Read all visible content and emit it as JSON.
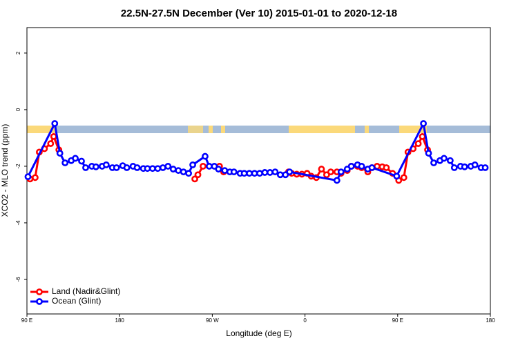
{
  "chart_data": {
    "type": "line",
    "title": "22.5N-27.5N December (Ver 10)   2015-01-01 to 2020-12-18",
    "x_label": "Longitude (deg E)",
    "y_label": "XCO2 - MLO trend (ppm)",
    "xlim": [
      90,
      540
    ],
    "xticks": [
      {
        "value": 90,
        "label": "90 E"
      },
      180,
      {
        "value": 270,
        "label": "90 W"
      },
      {
        "value": 360,
        "label": "0"
      },
      {
        "value": 450,
        "label": "90 E"
      },
      {
        "value": 540,
        "label": "180"
      }
    ],
    "ylim": [
      -7.22,
      2.9
    ],
    "yticks": [
      2,
      0,
      -2,
      -4,
      -6
    ],
    "legend": "bottom-left",
    "series": [
      {
        "name": "Land (Nadir&Glint)",
        "color": "#ff0000",
        "x": [
          93,
          98,
          102,
          107,
          113,
          116,
          121,
          null,
          253,
          256,
          261,
          277,
          281,
          null,
          344,
          347,
          352,
          357,
          362,
          366,
          371,
          376,
          381,
          385,
          391,
          395,
          401,
          405,
          411,
          415,
          421,
          425,
          430,
          435,
          439,
          445,
          451,
          456,
          460,
          465,
          470,
          474,
          479
        ],
        "values": [
          -2.45,
          -2.4,
          -1.5,
          -1.38,
          -1.2,
          -0.95,
          -1.42,
          null,
          -2.45,
          -2.3,
          -2.0,
          -2.0,
          -2.2,
          null,
          -2.2,
          -2.25,
          -2.28,
          -2.28,
          -2.25,
          -2.35,
          -2.4,
          -2.1,
          -2.3,
          -2.2,
          -2.2,
          -2.25,
          -2.15,
          -2.0,
          -2.0,
          -2.05,
          -2.2,
          -2.05,
          -2.0,
          -2.02,
          -2.05,
          -2.25,
          -2.5,
          -2.4,
          -1.5,
          -1.38,
          -1.2,
          -0.95,
          -1.42
        ]
      },
      {
        "name": "Ocean (Glint)",
        "color": "#0000ff",
        "x": [
          91,
          117,
          122,
          127,
          133,
          137,
          143,
          147,
          153,
          157,
          163,
          167,
          173,
          177,
          183,
          187,
          193,
          197,
          203,
          207,
          212,
          217,
          222,
          227,
          232,
          237,
          242,
          247,
          251,
          263,
          267,
          272,
          276,
          282,
          287,
          291,
          297,
          301,
          306,
          311,
          316,
          321,
          326,
          331,
          336,
          341,
          345,
          391,
          395,
          401,
          405,
          411,
          415,
          421,
          425,
          449,
          475,
          480,
          485,
          491,
          495,
          501,
          505,
          511,
          515,
          521,
          525,
          531,
          535
        ],
        "values": [
          -2.37,
          -0.49,
          -1.54,
          -1.88,
          -1.8,
          -1.72,
          -1.82,
          -2.05,
          -2.0,
          -2.02,
          -2.0,
          -1.95,
          -2.05,
          -2.05,
          -1.98,
          -2.05,
          -2.0,
          -2.05,
          -2.08,
          -2.08,
          -2.08,
          -2.08,
          -2.05,
          -2.0,
          -2.1,
          -2.15,
          -2.2,
          -2.25,
          -1.95,
          -1.65,
          -2.0,
          -2.0,
          -2.1,
          -2.15,
          -2.2,
          -2.2,
          -2.25,
          -2.25,
          -2.25,
          -2.25,
          -2.25,
          -2.22,
          -2.22,
          -2.2,
          -2.3,
          -2.3,
          -2.2,
          -2.5,
          -2.2,
          -2.1,
          -2.0,
          -1.95,
          -2.0,
          -2.1,
          -2.05,
          -2.35,
          -0.49,
          -1.54,
          -1.88,
          -1.8,
          -1.72,
          -1.8,
          -2.05,
          -2.0,
          -2.02,
          -2.0,
          -1.95,
          -2.05,
          -2.05
        ]
      }
    ]
  }
}
